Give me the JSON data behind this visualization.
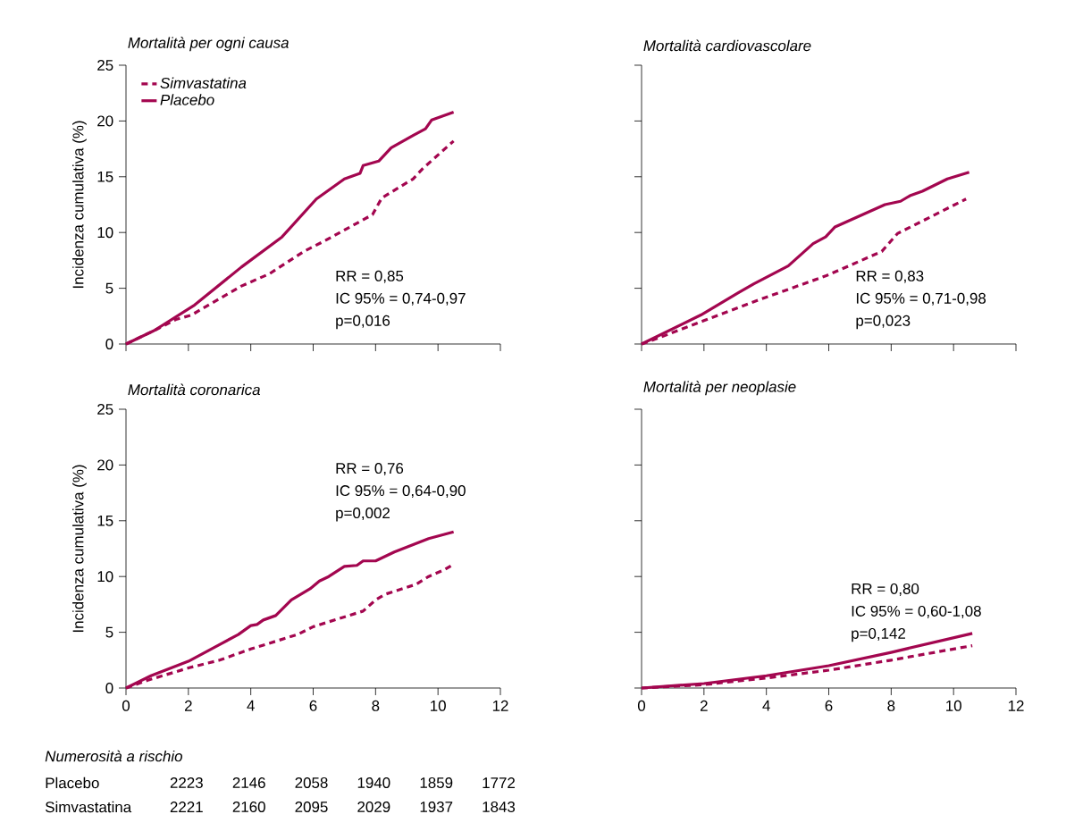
{
  "chart_data": [
    {
      "type": "line",
      "title": "Mortalità per ogni causa",
      "ylabel": "Incidenza cumulativa (%)",
      "xlim": [
        0,
        12
      ],
      "ylim": [
        0,
        25
      ],
      "xticks": [
        0,
        2,
        4,
        6,
        8,
        10,
        12
      ],
      "yticks": [
        0,
        5,
        10,
        15,
        20,
        25
      ],
      "tick_labels": "y",
      "legend": "top left",
      "series": [
        {
          "name": "Simvastatina",
          "color": "#a3064f",
          "line_style": "dashed",
          "x": [
            0,
            0.9,
            1.6,
            2.1,
            3.7,
            4.6,
            5.7,
            6.4,
            7.9,
            8.2,
            9.2,
            9.5,
            10.5
          ],
          "values": [
            0,
            1.2,
            2.2,
            2.6,
            5.2,
            6.3,
            8.3,
            9.3,
            11.6,
            13.1,
            14.8,
            15.7,
            18.2
          ]
        },
        {
          "name": "Placebo",
          "color": "#a3064f",
          "line_style": "solid",
          "x": [
            0,
            0.9,
            2.2,
            3.7,
            5,
            6.1,
            7,
            7.5,
            7.6,
            8.1,
            8.5,
            9.2,
            9.6,
            9.8,
            10.5
          ],
          "values": [
            0,
            1.2,
            3.5,
            6.9,
            9.6,
            13,
            14.8,
            15.3,
            16,
            16.4,
            17.6,
            18.7,
            19.3,
            20.1,
            20.8
          ]
        }
      ],
      "annotations": [
        "RR = 0,85",
        "IC 95% = 0,74-0,97",
        "p=0,016"
      ]
    },
    {
      "type": "line",
      "title": "Mortalità cardiovascolare",
      "xlim": [
        0,
        12
      ],
      "ylim": [
        0,
        25
      ],
      "xticks": [
        0,
        2,
        4,
        6,
        8,
        10,
        12
      ],
      "yticks": [
        0,
        5,
        10,
        15,
        20,
        25
      ],
      "tick_labels": false,
      "series": [
        {
          "color": "#a3064f",
          "line_style": "dashed",
          "x": [
            0,
            0.6,
            2,
            3.8,
            5.9,
            7.7,
            8.2,
            10.4
          ],
          "values": [
            0,
            0.6,
            2.1,
            4,
            6.1,
            8.3,
            9.9,
            13
          ]
        },
        {
          "color": "#a3064f",
          "line_style": "solid",
          "x": [
            0,
            1.9,
            3.1,
            3.6,
            4.7,
            5.5,
            5.9,
            6.2,
            7,
            7.8,
            8.3,
            8.6,
            9,
            9.8,
            10.5
          ],
          "values": [
            0,
            2.6,
            4.6,
            5.4,
            7,
            9,
            9.6,
            10.5,
            11.5,
            12.5,
            12.8,
            13.3,
            13.7,
            14.8,
            15.4
          ]
        }
      ],
      "annotations": [
        "RR = 0,83",
        "IC 95% = 0,71-0,98",
        "p=0,023"
      ]
    },
    {
      "type": "line",
      "title": "Mortalità coronarica",
      "ylabel": "Incidenza cumulativa (%)",
      "xlim": [
        0,
        12
      ],
      "ylim": [
        0,
        25
      ],
      "xticks": [
        0,
        2,
        4,
        6,
        8,
        10,
        12
      ],
      "yticks": [
        0,
        5,
        10,
        15,
        20,
        25
      ],
      "series": [
        {
          "color": "#a3064f",
          "line_style": "dashed",
          "x": [
            0,
            0.7,
            2,
            3,
            4,
            5.5,
            6,
            7.6,
            8,
            8.3,
            9.3,
            9.7,
            10.2,
            10.5
          ],
          "values": [
            0,
            0.7,
            1.8,
            2.5,
            3.5,
            4.8,
            5.5,
            6.9,
            7.9,
            8.4,
            9.3,
            10,
            10.6,
            11.1
          ]
        },
        {
          "color": "#a3064f",
          "line_style": "solid",
          "x": [
            0,
            0.8,
            2,
            3,
            3.6,
            4,
            4.2,
            4.4,
            4.8,
            5.3,
            5.9,
            6.2,
            6.5,
            7,
            7.4,
            7.6,
            8,
            8.6,
            9.7,
            10.5
          ],
          "values": [
            0,
            1.1,
            2.4,
            3.9,
            4.8,
            5.6,
            5.7,
            6.1,
            6.5,
            7.9,
            8.9,
            9.6,
            10,
            10.9,
            11,
            11.4,
            11.4,
            12.2,
            13.4,
            14
          ]
        }
      ],
      "annotations": [
        "RR = 0,76",
        "IC 95% = 0,64-0,90",
        "p=0,002",
        "Numerosità a rischio",
        "Placebo",
        "2223",
        "2146",
        "2058",
        "1940",
        "1859",
        "1772",
        "Simvastatina",
        "2221",
        "2160",
        "2095",
        "2029",
        "1937",
        "1843"
      ]
    },
    {
      "type": "line",
      "title": "Mortalità per neoplasie",
      "xlim": [
        0,
        12
      ],
      "ylim": [
        0,
        25
      ],
      "xticks": [
        0,
        2,
        4,
        6,
        8,
        10,
        12
      ],
      "yticks": [
        0,
        5,
        10,
        15,
        20,
        25
      ],
      "tick_labels": "x",
      "series": [
        {
          "color": "#a3064f",
          "line_style": "dashed",
          "x": [
            0,
            2,
            4,
            6,
            8,
            10.6
          ],
          "values": [
            0,
            0.3,
            0.9,
            1.6,
            2.5,
            3.8
          ]
        },
        {
          "color": "#a3064f",
          "line_style": "solid",
          "x": [
            0,
            2,
            4,
            6,
            8,
            10.6
          ],
          "values": [
            0,
            0.4,
            1.1,
            2,
            3.2,
            4.9
          ]
        }
      ],
      "annotations": [
        "RR = 0,80",
        "IC 95% = 0,60-1,08",
        "p=0,142"
      ]
    }
  ]
}
